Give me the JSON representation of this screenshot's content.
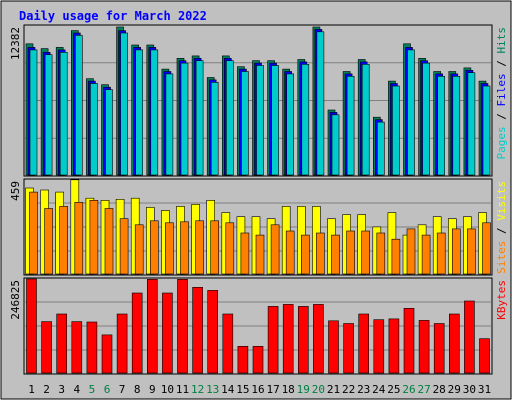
{
  "chart_data": {
    "type": "bar",
    "title": "Daily usage for March 2022",
    "categories": [
      "1",
      "2",
      "3",
      "4",
      "5",
      "6",
      "7",
      "8",
      "9",
      "10",
      "11",
      "12",
      "13",
      "14",
      "15",
      "16",
      "17",
      "18",
      "19",
      "20",
      "21",
      "22",
      "23",
      "24",
      "25",
      "26",
      "27",
      "28",
      "29",
      "30",
      "31"
    ],
    "weekend_days": [
      "5",
      "6",
      "12",
      "13",
      "19",
      "20",
      "26",
      "27"
    ],
    "panels": [
      {
        "name": "hits_files_pages",
        "max_label": "12382",
        "ylim": [
          0,
          12382
        ],
        "ylabel_parts": [
          {
            "text": "Pages",
            "color": "#00cccc"
          },
          {
            "text": " / ",
            "color": "#000000"
          },
          {
            "text": "Files",
            "color": "#0000ff"
          },
          {
            "text": " / ",
            "color": "#000000"
          },
          {
            "text": "Hits",
            "color": "#00805c"
          }
        ],
        "series": [
          {
            "name": "Hits",
            "color": "#00805c",
            "values": [
              10900,
              10500,
              10600,
              12000,
              8000,
              7500,
              12300,
              10800,
              10800,
              8800,
              9700,
              9900,
              8100,
              9900,
              9000,
              9500,
              9500,
              8800,
              9600,
              12300,
              5400,
              8600,
              9600,
              4800,
              7800,
              10900,
              9700,
              8600,
              8600,
              8900,
              7800
            ]
          },
          {
            "name": "Files",
            "color": "#0000ff",
            "values": [
              10600,
              10200,
              10400,
              11800,
              7800,
              7300,
              12000,
              10600,
              10600,
              8600,
              9500,
              9700,
              7900,
              9700,
              8800,
              9300,
              9300,
              8600,
              9400,
              12100,
              5200,
              8400,
              9400,
              4600,
              7600,
              10600,
              9500,
              8400,
              8400,
              8700,
              7600
            ]
          },
          {
            "name": "Pages",
            "color": "#00cccc",
            "values": [
              10400,
              10000,
              10200,
              11600,
              7600,
              7100,
              11800,
              10400,
              10400,
              8400,
              9300,
              9500,
              7700,
              9500,
              8600,
              9100,
              9100,
              8400,
              9200,
              11900,
              5000,
              8200,
              9200,
              4400,
              7400,
              10400,
              9300,
              8200,
              8200,
              8500,
              7400
            ]
          }
        ]
      },
      {
        "name": "visits_sites",
        "max_label": "459",
        "ylim": [
          0,
          459
        ],
        "ylabel_parts": [
          {
            "text": "Sites",
            "color": "#ff8000"
          },
          {
            "text": " / ",
            "color": "#000000"
          },
          {
            "text": "Visits",
            "color": "#ffff00"
          }
        ],
        "series": [
          {
            "name": "Visits",
            "color": "#ffff00",
            "values": [
              420,
              410,
              400,
              460,
              370,
              360,
              365,
              370,
              325,
              310,
              330,
              340,
              360,
              300,
              280,
              280,
              270,
              330,
              330,
              330,
              270,
              290,
              290,
              230,
              300,
              190,
              240,
              280,
              270,
              280,
              300
            ]
          },
          {
            "name": "Sites",
            "color": "#ff8000",
            "values": [
              400,
              320,
              330,
              350,
              360,
              320,
              270,
              240,
              260,
              250,
              255,
              260,
              260,
              250,
              200,
              190,
              240,
              210,
              190,
              200,
              190,
              210,
              210,
              200,
              170,
              220,
              190,
              200,
              220,
              220,
              250
            ]
          }
        ]
      },
      {
        "name": "kbytes",
        "max_label": "246825",
        "ylim": [
          0,
          246825
        ],
        "ylabel_parts": [
          {
            "text": "KBytes",
            "color": "#ff0000"
          }
        ],
        "series": [
          {
            "name": "KBytes",
            "color": "#ff0000",
            "values": [
              246825,
              135000,
              155000,
              135000,
              134000,
              100000,
              155000,
              210000,
              246000,
              210000,
              246000,
              225000,
              217000,
              155000,
              70000,
              70000,
              175000,
              180000,
              175000,
              180000,
              137000,
              130000,
              155000,
              140000,
              142000,
              170000,
              138000,
              130000,
              155000,
              189000,
              90000
            ]
          }
        ]
      }
    ]
  }
}
